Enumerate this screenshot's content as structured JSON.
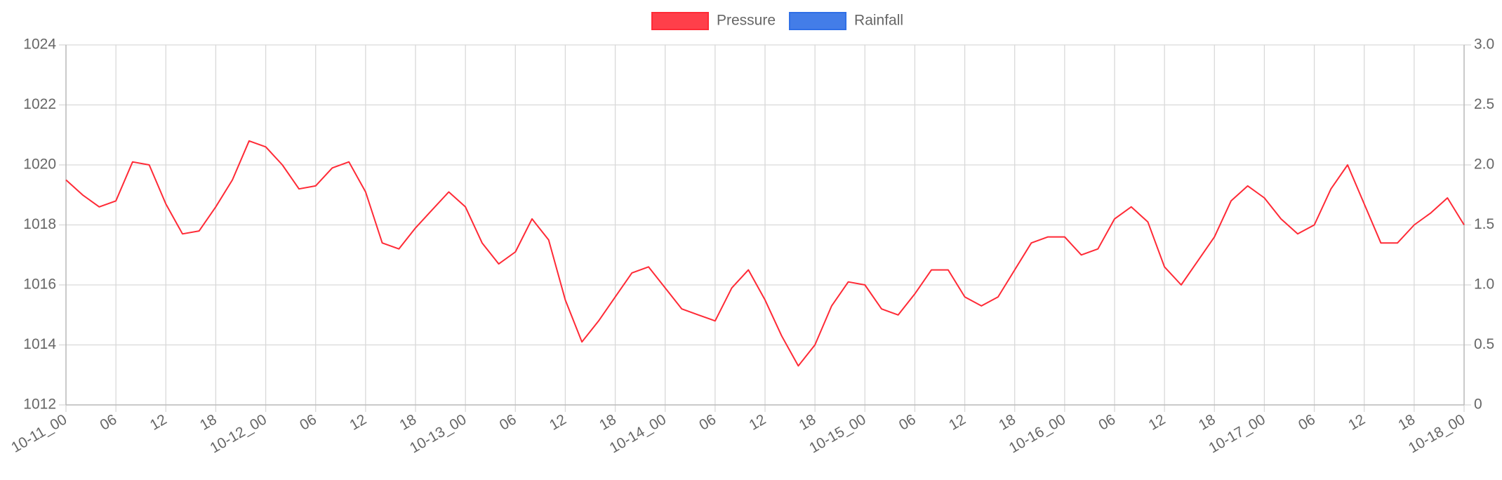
{
  "chart_data": {
    "type": "line",
    "categories": [
      "10-11_00",
      null,
      null,
      "06",
      null,
      null,
      "12",
      null,
      null,
      "18",
      null,
      null,
      "10-12_00",
      null,
      null,
      "06",
      null,
      null,
      "12",
      null,
      null,
      "18",
      null,
      null,
      "10-13_00",
      null,
      null,
      "06",
      null,
      null,
      "12",
      null,
      null,
      "18",
      null,
      null,
      "10-14_00",
      null,
      null,
      "06",
      null,
      null,
      "12",
      null,
      null,
      "18",
      null,
      null,
      "10-15_00",
      null,
      null,
      "06",
      null,
      null,
      "12",
      null,
      null,
      "18",
      null,
      null,
      "10-16_00",
      null,
      null,
      "06",
      null,
      null,
      "12",
      null,
      null,
      "18",
      null,
      null,
      "10-17_00",
      null,
      null,
      "06",
      null,
      null,
      "12",
      null,
      null,
      "18",
      null,
      null,
      "10-18_00"
    ],
    "series": [
      {
        "name": "Pressure",
        "color": "#ff2a36",
        "axis": "y",
        "values": [
          1019.5,
          1019.0,
          1018.6,
          1018.8,
          1020.1,
          1020.0,
          1018.7,
          1017.7,
          1017.8,
          1018.6,
          1019.5,
          1020.8,
          1020.6,
          1020.0,
          1019.2,
          1019.3,
          1019.9,
          1020.1,
          1019.1,
          1017.4,
          1017.2,
          1017.9,
          1018.5,
          1019.1,
          1018.6,
          1017.4,
          1016.7,
          1017.1,
          1018.2,
          1017.5,
          1015.5,
          1014.1,
          1014.8,
          1015.6,
          1016.4,
          1016.6,
          1015.9,
          1015.2,
          1015.0,
          1014.8,
          1015.9,
          1016.5,
          1015.5,
          1014.3,
          1013.3,
          1014.0,
          1015.3,
          1016.1,
          1016.0,
          1015.2,
          1015.0,
          1015.7,
          1016.5,
          1016.5,
          1015.6,
          1015.3,
          1015.6,
          1016.5,
          1017.4,
          1017.6,
          1017.6,
          1017.0,
          1017.2,
          1018.2,
          1018.6,
          1018.1,
          1016.6,
          1016.0,
          1016.8,
          1017.6,
          1018.8,
          1019.3,
          1018.9,
          1018.2,
          1017.7,
          1018.0,
          1019.2,
          1020.0,
          1018.7,
          1017.4,
          1017.4,
          1018.0,
          1018.4,
          1018.9,
          1018.0
        ]
      },
      {
        "name": "Rainfall",
        "color": "#2f6fe6",
        "axis": "y2",
        "values": [
          null,
          null,
          null,
          null,
          null,
          null,
          null,
          null,
          null,
          null,
          null,
          null,
          null,
          null,
          null,
          null,
          null,
          null,
          null,
          null,
          null,
          null,
          null,
          null,
          null,
          null,
          null,
          null,
          null,
          null,
          null,
          null,
          null,
          null,
          null,
          null,
          null,
          null,
          null,
          null,
          null,
          null,
          null,
          null,
          null,
          null,
          null,
          null,
          null,
          null,
          null,
          null,
          null,
          null,
          null,
          null,
          null,
          null,
          null,
          null,
          null,
          null,
          null,
          null,
          null,
          null,
          null,
          null,
          null,
          null,
          null,
          null,
          null,
          null,
          null,
          null,
          null,
          null,
          null,
          null,
          null,
          null,
          null,
          null,
          null
        ]
      }
    ],
    "ylim": [
      1012,
      1024
    ],
    "yticks": [
      1012,
      1014,
      1016,
      1018,
      1020,
      1022,
      1024
    ],
    "y2lim": [
      0,
      3
    ],
    "y2ticks": [
      0,
      0.5,
      {
        "value": 1,
        "label": "1.0"
      },
      1.5,
      {
        "value": 2,
        "label": "2.0"
      },
      2.5,
      {
        "value": 3,
        "label": "3.0"
      }
    ],
    "grid": true,
    "legend": "top"
  }
}
